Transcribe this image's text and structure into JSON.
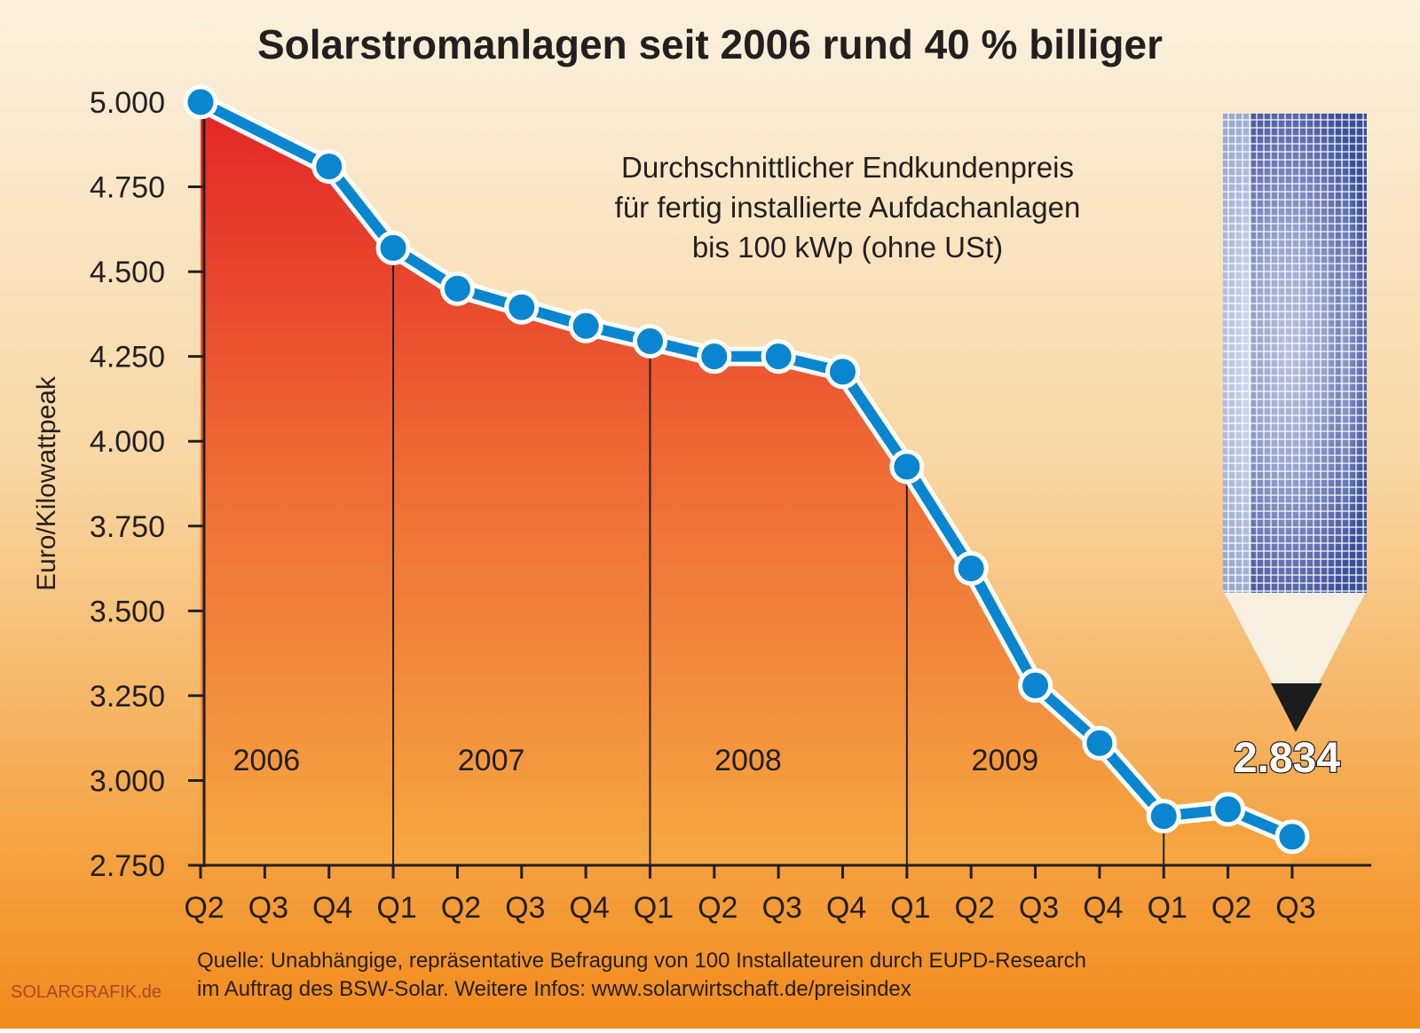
{
  "chart_data": {
    "type": "area",
    "title": "Solarstromanlagen seit 2006 rund 40 % billiger",
    "subtitle": [
      "Durchschnittlicher Endkundenpreis",
      "für fertig installierte Aufdachanlagen",
      "bis 100 kWp (ohne USt)"
    ],
    "ylabel": "Euro/Kilowattpeak",
    "xlabel": "",
    "ylim": [
      2750,
      5000
    ],
    "yticks": [
      5000,
      4750,
      4500,
      4250,
      4000,
      3750,
      3500,
      3250,
      3000,
      2750
    ],
    "ytick_labels": [
      "5.000",
      "4.750",
      "4.500",
      "4.250",
      "4.000",
      "3.750",
      "3.500",
      "3.250",
      "3.000",
      "2.750"
    ],
    "categories": [
      "Q2",
      "Q3",
      "Q4",
      "Q1",
      "Q2",
      "Q3",
      "Q4",
      "Q1",
      "Q2",
      "Q3",
      "Q4",
      "Q1",
      "Q2",
      "Q3",
      "Q4",
      "Q1",
      "Q2",
      "Q3"
    ],
    "years": [
      {
        "label": "2006",
        "start": 0,
        "end": 2
      },
      {
        "label": "2007",
        "start": 3,
        "end": 6
      },
      {
        "label": "2008",
        "start": 7,
        "end": 10
      },
      {
        "label": "2009",
        "start": 11,
        "end": 14
      },
      {
        "label": "",
        "start": 15,
        "end": 17
      }
    ],
    "values": [
      5000,
      null,
      4810,
      4570,
      4450,
      4395,
      4340,
      4295,
      4250,
      4250,
      4205,
      3925,
      3625,
      3280,
      3110,
      2895,
      2915,
      2834
    ],
    "annotation": "2.834",
    "grid": false,
    "colors": {
      "line": "#0a86d0",
      "marker": "#0a86d0",
      "area_top": "#e32a25",
      "area_bottom": "#f5a540",
      "background_top": "#fbefd8",
      "background_bottom": "#f3901e"
    }
  },
  "footer": {
    "source_line1": "Quelle: Unabhängige, repräsentative Befragung von 100 Installateuren durch EUPD-Research",
    "source_line2": "im Auftrag des BSW-Solar. Weitere Infos: www.solarwirtschaft.de/preisindex",
    "credit": "SOLARGRAFIK.de"
  }
}
